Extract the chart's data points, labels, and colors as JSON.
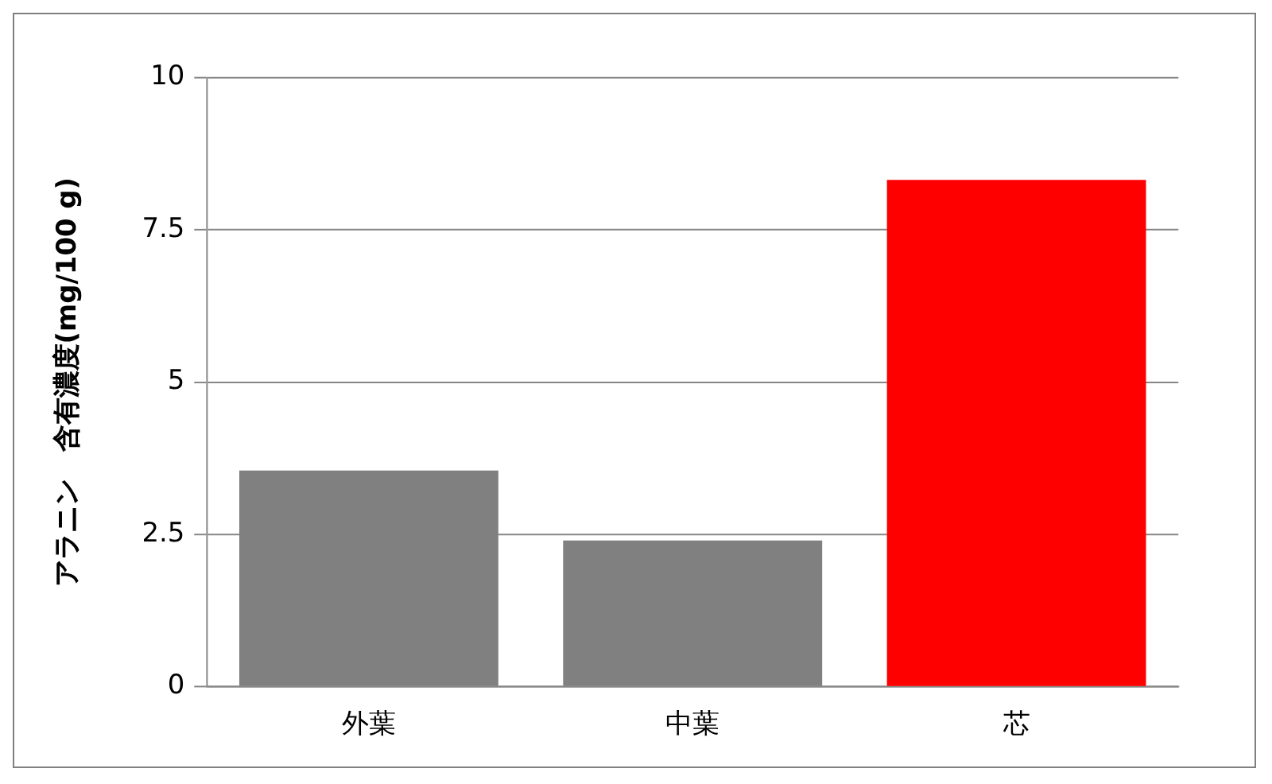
{
  "chart_data": {
    "type": "bar",
    "ylabel": "アラニン　含有濃度(mg/100 g)",
    "categories": [
      "外葉",
      "中葉",
      "芯"
    ],
    "values": [
      3.55,
      2.4,
      8.32
    ],
    "colors": [
      "#808080",
      "#808080",
      "#ff0000"
    ],
    "ylim": [
      0,
      10
    ],
    "yticks": [
      0,
      2.5,
      5,
      7.5,
      10
    ],
    "grid": "y",
    "legend": false
  }
}
